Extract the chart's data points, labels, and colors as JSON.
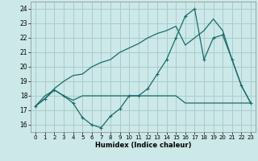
{
  "xlabel": "Humidex (Indice chaleur)",
  "background_color": "#cce8e8",
  "grid_color": "#aacccc",
  "line_color": "#1a6b6b",
  "xlim": [
    -0.5,
    23.5
  ],
  "ylim": [
    15.5,
    24.5
  ],
  "xticks": [
    0,
    1,
    2,
    3,
    4,
    5,
    6,
    7,
    8,
    9,
    10,
    11,
    12,
    13,
    14,
    15,
    16,
    17,
    18,
    19,
    20,
    21,
    22,
    23
  ],
  "yticks": [
    16,
    17,
    18,
    19,
    20,
    21,
    22,
    23,
    24
  ],
  "line1_x": [
    0,
    1,
    2,
    3,
    4,
    5,
    6,
    7,
    8,
    9,
    10,
    11,
    12,
    13,
    14,
    15,
    16,
    17,
    18,
    19,
    20,
    21,
    22,
    23
  ],
  "line1_y": [
    17.3,
    17.8,
    18.4,
    18.0,
    17.5,
    16.5,
    16.0,
    15.8,
    16.6,
    17.1,
    18.0,
    18.0,
    18.5,
    19.5,
    20.5,
    22.0,
    23.5,
    24.0,
    20.5,
    22.0,
    22.2,
    20.5,
    18.7,
    17.5
  ],
  "line2_x": [
    0,
    1,
    2,
    3,
    4,
    5,
    6,
    7,
    8,
    9,
    10,
    11,
    12,
    13,
    14,
    15,
    16,
    17,
    18,
    19,
    20,
    21,
    22,
    23
  ],
  "line2_y": [
    17.3,
    18.0,
    18.4,
    18.0,
    17.7,
    18.0,
    18.0,
    18.0,
    18.0,
    18.0,
    18.0,
    18.0,
    18.0,
    18.0,
    18.0,
    18.0,
    17.5,
    17.5,
    17.5,
    17.5,
    17.5,
    17.5,
    17.5,
    17.5
  ],
  "line3_x": [
    0,
    1,
    2,
    3,
    4,
    5,
    6,
    7,
    8,
    9,
    10,
    11,
    12,
    13,
    14,
    15,
    16,
    17,
    18,
    19,
    20,
    21,
    22,
    23
  ],
  "line3_y": [
    17.3,
    17.8,
    18.5,
    19.0,
    19.4,
    19.5,
    20.0,
    20.3,
    20.5,
    21.0,
    21.3,
    21.6,
    22.0,
    22.3,
    22.5,
    22.8,
    21.5,
    22.0,
    22.5,
    23.3,
    22.5,
    20.5,
    18.7,
    17.5
  ]
}
